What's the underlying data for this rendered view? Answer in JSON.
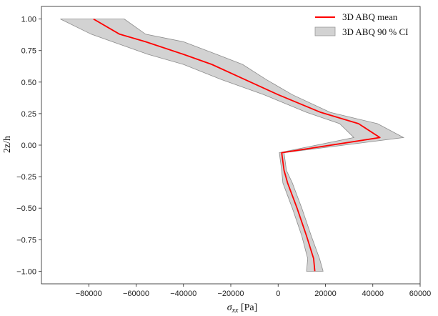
{
  "chart_data": {
    "type": "line",
    "title": "",
    "xlabel_symbol": "σ",
    "xlabel_subscript": "xx",
    "xlabel_unit": " [Pa]",
    "ylabel": "2z/h",
    "xlim": [
      -100000,
      60000
    ],
    "ylim": [
      -1.1,
      1.1
    ],
    "xticks": [
      -80000,
      -60000,
      -40000,
      -20000,
      0,
      20000,
      40000,
      60000
    ],
    "xtick_labels": [
      "−80000",
      "−60000",
      "−40000",
      "−20000",
      "0",
      "20000",
      "40000",
      "60000"
    ],
    "yticks": [
      1.0,
      0.75,
      0.5,
      0.25,
      0.0,
      -0.25,
      -0.5,
      -0.75,
      -1.0
    ],
    "ytick_labels": [
      "1.00",
      "0.75",
      "0.50",
      "0.25",
      "0.00",
      "−0.25",
      "−0.50",
      "−0.75",
      "−1.00"
    ],
    "grid": false,
    "legend_position": "top-right",
    "series": [
      {
        "name": "3D ABQ mean",
        "kind": "line",
        "color": "#ff0000",
        "points": [
          [
            -78000,
            1.0
          ],
          [
            -67000,
            0.88
          ],
          [
            -56000,
            0.82
          ],
          [
            -40000,
            0.72
          ],
          [
            -28000,
            0.64
          ],
          [
            -14000,
            0.52
          ],
          [
            0,
            0.4
          ],
          [
            18000,
            0.26
          ],
          [
            34000,
            0.17
          ],
          [
            43000,
            0.06
          ],
          [
            1500,
            -0.06
          ],
          [
            2500,
            -0.2
          ],
          [
            4000,
            -0.3
          ],
          [
            8000,
            -0.5
          ],
          [
            12000,
            -0.72
          ],
          [
            15000,
            -0.9
          ],
          [
            15500,
            -1.0
          ]
        ]
      },
      {
        "name": "3D ABQ 90 % CI",
        "kind": "band",
        "color": "#b4b4b4",
        "upper": [
          [
            -65000,
            1.0
          ],
          [
            -56000,
            0.88
          ],
          [
            -40000,
            0.82
          ],
          [
            -26000,
            0.72
          ],
          [
            -15000,
            0.64
          ],
          [
            -5000,
            0.52
          ],
          [
            6000,
            0.4
          ],
          [
            22000,
            0.26
          ],
          [
            42000,
            0.17
          ],
          [
            53000,
            0.06
          ],
          [
            2500,
            -0.06
          ],
          [
            3500,
            -0.2
          ],
          [
            6000,
            -0.3
          ],
          [
            10000,
            -0.5
          ],
          [
            14000,
            -0.72
          ],
          [
            17500,
            -0.9
          ],
          [
            19000,
            -1.0
          ]
        ],
        "lower": [
          [
            -92000,
            1.0
          ],
          [
            -79000,
            0.88
          ],
          [
            -70000,
            0.82
          ],
          [
            -55000,
            0.72
          ],
          [
            -40000,
            0.64
          ],
          [
            -24000,
            0.52
          ],
          [
            -6000,
            0.4
          ],
          [
            12000,
            0.26
          ],
          [
            26000,
            0.17
          ],
          [
            32000,
            0.06
          ],
          [
            500,
            -0.06
          ],
          [
            1500,
            -0.2
          ],
          [
            2000,
            -0.3
          ],
          [
            6000,
            -0.5
          ],
          [
            10000,
            -0.72
          ],
          [
            12500,
            -0.9
          ],
          [
            12000,
            -1.0
          ]
        ]
      }
    ]
  }
}
